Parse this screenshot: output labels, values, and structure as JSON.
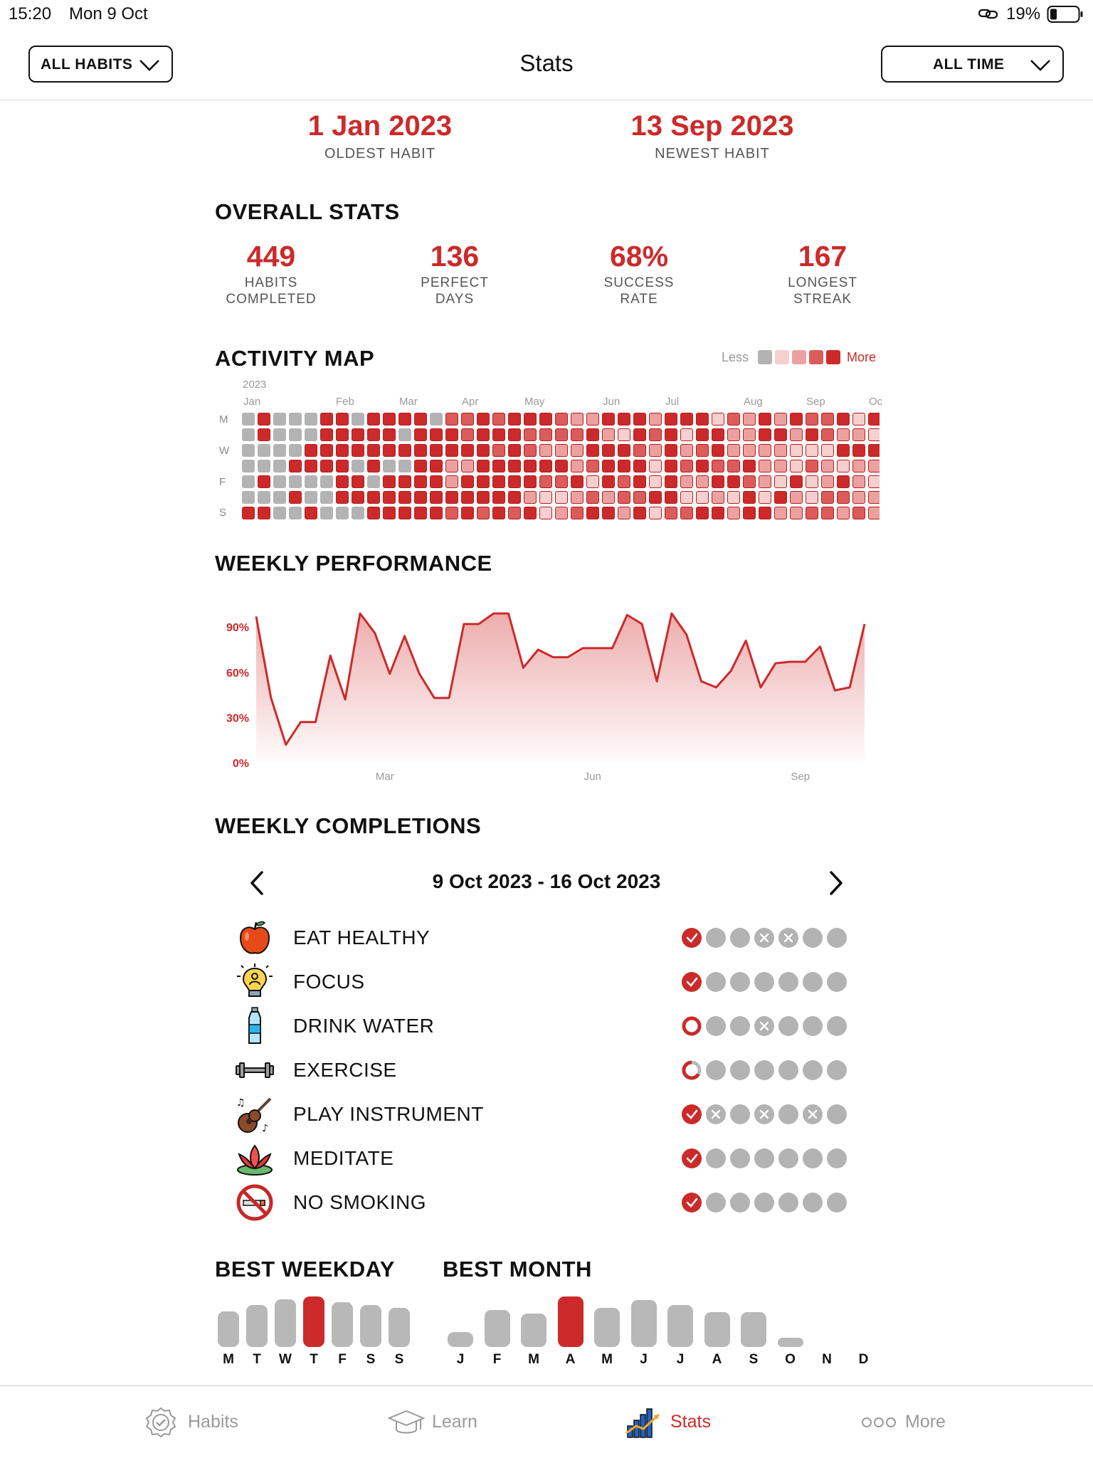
{
  "status": {
    "time": "15:20",
    "date": "Mon 9 Oct",
    "battery": "19%"
  },
  "header": {
    "title": "Stats",
    "filter_habits": "ALL HABITS",
    "filter_time": "ALL TIME"
  },
  "dates": {
    "oldest_value": "1 Jan 2023",
    "oldest_label": "OLDEST HABIT",
    "newest_value": "13 Sep 2023",
    "newest_label": "NEWEST HABIT"
  },
  "overall": {
    "title": "OVERALL STATS",
    "items": [
      {
        "value": "449",
        "line1": "HABITS",
        "line2": "COMPLETED"
      },
      {
        "value": "136",
        "line1": "PERFECT",
        "line2": "DAYS"
      },
      {
        "value": "68%",
        "line1": "SUCCESS",
        "line2": "RATE"
      },
      {
        "value": "167",
        "line1": "LONGEST",
        "line2": "STREAK"
      }
    ]
  },
  "activity": {
    "title": "ACTIVITY MAP",
    "legend_less": "Less",
    "legend_more": "More",
    "legend_colors": [
      "#b3b3b3",
      "#f6cfcf",
      "#eda0a0",
      "#dc5b5b",
      "#cc2a2a"
    ],
    "year": "2023",
    "months": [
      "Jan",
      "Feb",
      "Mar",
      "Apr",
      "May",
      "Jun",
      "Jul",
      "Aug",
      "Sep",
      "Oc"
    ],
    "day_labels": [
      "M",
      "W",
      "F",
      "S"
    ],
    "weeks": 41
  },
  "weekly_performance": {
    "title": "WEEKLY PERFORMANCE",
    "chart_data": {
      "type": "area",
      "yticks": [
        "90%",
        "60%",
        "30%",
        "0%"
      ],
      "xticks": [
        "Mar",
        "Jun",
        "Sep"
      ],
      "ylim": [
        0,
        100
      ],
      "values": [
        97,
        43,
        12,
        27,
        27,
        71,
        42,
        99,
        86,
        59,
        84,
        59,
        43,
        43,
        92,
        92,
        99,
        99,
        63,
        75,
        70,
        70,
        76,
        76,
        76,
        98,
        92,
        54,
        99,
        85,
        54,
        50,
        61,
        81,
        50,
        66,
        67,
        67,
        77,
        48,
        50,
        92
      ]
    }
  },
  "weekly_completions": {
    "title": "WEEKLY COMPLETIONS",
    "range": "9 Oct 2023 - 16 Oct 2023",
    "habits": [
      {
        "name": "EAT HEALTHY",
        "icon": "apple-icon",
        "days": [
          "done",
          "empty",
          "empty",
          "skip",
          "skip",
          "empty",
          "empty"
        ]
      },
      {
        "name": "FOCUS",
        "icon": "lightbulb-icon",
        "days": [
          "done",
          "empty",
          "empty",
          "empty",
          "empty",
          "empty",
          "empty"
        ]
      },
      {
        "name": "DRINK WATER",
        "icon": "water-bottle-icon",
        "days": [
          "ring",
          "empty",
          "empty",
          "skip",
          "empty",
          "empty",
          "empty"
        ]
      },
      {
        "name": "EXERCISE",
        "icon": "dumbbell-icon",
        "days": [
          "partial",
          "empty",
          "empty",
          "empty",
          "empty",
          "empty",
          "empty"
        ]
      },
      {
        "name": "PLAY INSTRUMENT",
        "icon": "guitar-icon",
        "days": [
          "done",
          "skip",
          "empty",
          "skip",
          "empty",
          "skip",
          "empty"
        ]
      },
      {
        "name": "MEDITATE",
        "icon": "lotus-icon",
        "days": [
          "done",
          "empty",
          "empty",
          "empty",
          "empty",
          "empty",
          "empty"
        ]
      },
      {
        "name": "NO SMOKING",
        "icon": "no-smoking-icon",
        "days": [
          "done",
          "empty",
          "empty",
          "empty",
          "empty",
          "empty",
          "empty"
        ]
      }
    ]
  },
  "best_weekday": {
    "title": "BEST WEEKDAY",
    "chart_data": {
      "type": "bar",
      "categories": [
        "M",
        "T",
        "W",
        "T",
        "F",
        "S",
        "S"
      ],
      "values": [
        60,
        70,
        80,
        85,
        75,
        70,
        65
      ],
      "highlight_index": 3
    }
  },
  "best_month": {
    "title": "BEST MONTH",
    "chart_data": {
      "type": "bar",
      "categories": [
        "J",
        "F",
        "M",
        "A",
        "M",
        "J",
        "J",
        "A",
        "S",
        "O",
        "N",
        "D"
      ],
      "values": [
        25,
        62,
        56,
        85,
        66,
        78,
        70,
        58,
        58,
        15,
        0,
        0
      ],
      "highlight_index": 3
    }
  },
  "colors": {
    "accent": "#cc2a2a",
    "grey": "#b3b3b3"
  },
  "tabs": [
    {
      "label": "Habits",
      "icon": "habits-badge-icon"
    },
    {
      "label": "Learn",
      "icon": "graduation-cap-icon"
    },
    {
      "label": "Stats",
      "icon": "stats-chart-icon"
    },
    {
      "label": "More",
      "icon": "more-dots-icon"
    }
  ]
}
